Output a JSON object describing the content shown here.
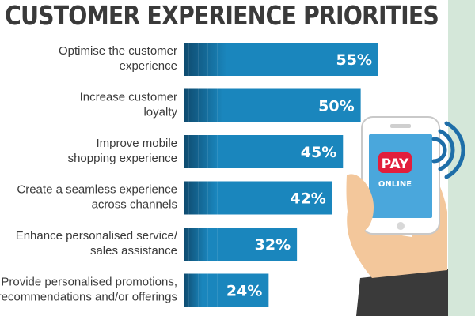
{
  "title": "CUSTOMER EXPERIENCE PRIORITIES",
  "phone": {
    "pay_text": "PAY",
    "online_text": "ONLINE"
  },
  "colors": {
    "bar_dark": "#0e4a6e",
    "bar_light": "#1a86bd",
    "side_panel": "#d4e7d9",
    "phone_screen": "#4aa7dc",
    "pay_button": "#e21e3c",
    "wifi": "#1e6ea8",
    "skin": "#f3c79b",
    "sleeve": "#3a3a3a"
  },
  "chart_data": {
    "type": "bar",
    "orientation": "horizontal",
    "title": "CUSTOMER EXPERIENCE PRIORITIES",
    "categories": [
      [
        "Optimise the customer",
        "experience"
      ],
      [
        "Increase customer",
        "loyalty"
      ],
      [
        "Improve mobile",
        "shopping experience"
      ],
      [
        "Create a seamless experience",
        "across channels"
      ],
      [
        "Enhance personalised service/",
        "sales assistance"
      ],
      [
        "Provide personalised promotions,",
        "recommendations and/or offerings"
      ]
    ],
    "values": [
      55,
      50,
      45,
      42,
      32,
      24
    ],
    "value_labels": [
      "55%",
      "50%",
      "45%",
      "42%",
      "32%",
      "24%"
    ],
    "unit": "%",
    "xlim": [
      0,
      100
    ],
    "grid": false,
    "legend": "none"
  }
}
